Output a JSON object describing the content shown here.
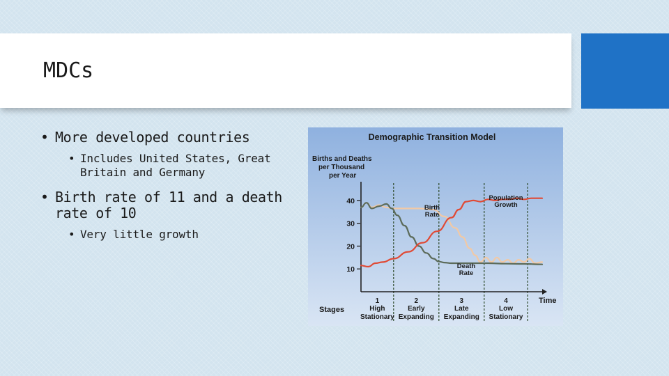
{
  "slide": {
    "title": "MDCs",
    "bullets": [
      {
        "text": "More developed countries",
        "sub": [
          "Includes United States, Great Britain and Germany"
        ]
      },
      {
        "text": "Birth rate of 11 and a death rate of 10",
        "sub": [
          "Very little growth"
        ]
      }
    ],
    "accent_color": "#1f72c6"
  },
  "chart_data": {
    "type": "line",
    "title": "Demographic Transition Model",
    "ylabel_lines": [
      "Births and Deaths",
      "per Thousand",
      "per Year"
    ],
    "xlabel": "Time",
    "stages_label": "Stages",
    "yticks": [
      10,
      20,
      30,
      40
    ],
    "ylim": [
      0,
      47
    ],
    "xlim": [
      0,
      10
    ],
    "stages": [
      {
        "number": "1",
        "line1": "High",
        "line2": "Stationary",
        "start": 0,
        "end": 1.8
      },
      {
        "number": "2",
        "line1": "Early",
        "line2": "Expanding",
        "start": 1.8,
        "end": 4.3
      },
      {
        "number": "3",
        "line1": "Late",
        "line2": "Expanding",
        "start": 4.3,
        "end": 6.8
      },
      {
        "number": "4",
        "line1": "Low",
        "line2": "Stationary",
        "start": 6.8,
        "end": 9.2
      }
    ],
    "series": [
      {
        "name": "Birth Rate",
        "label_lines": [
          "Birth",
          "Rate"
        ],
        "color": "#f1c9a6",
        "x": [
          0,
          0.3,
          0.6,
          1.0,
          1.4,
          1.8,
          2.5,
          3.2,
          4.0,
          4.6,
          5.2,
          5.6,
          6.0,
          6.3,
          6.6,
          6.9,
          7.2,
          7.5,
          7.8,
          8.1,
          8.4,
          8.7,
          9.0,
          9.3,
          9.6,
          10
        ],
        "values": [
          37,
          39,
          37,
          38,
          37,
          36.5,
          36.5,
          36.5,
          36,
          33,
          28,
          24,
          19,
          16,
          13,
          15,
          13,
          15,
          13,
          14,
          12.5,
          14,
          13,
          14.5,
          12.5,
          13
        ]
      },
      {
        "name": "Death Rate",
        "label_lines": [
          "Death",
          "Rate"
        ],
        "color": "#5c6b5a",
        "x": [
          0,
          0.3,
          0.6,
          1.0,
          1.4,
          1.7,
          2.0,
          2.4,
          2.8,
          3.2,
          3.6,
          4.0,
          4.3,
          4.6,
          5.0,
          6.0,
          7.0,
          8.0,
          9.0,
          10
        ],
        "values": [
          37,
          39,
          36.5,
          37.5,
          38.5,
          36.5,
          33.5,
          29,
          24,
          20,
          17,
          14.5,
          13.2,
          12.8,
          12.5,
          12.5,
          12.5,
          12.3,
          12.2,
          12
        ]
      },
      {
        "name": "Population Growth",
        "label_lines": [
          "Population",
          "Growth"
        ],
        "color": "#e04a35",
        "x": [
          0,
          0.4,
          0.8,
          1.2,
          1.8,
          2.6,
          3.4,
          4.2,
          5.0,
          5.4,
          5.8,
          6.2,
          6.6,
          7.0,
          7.4,
          7.8,
          8.2,
          8.6,
          9.0,
          9.4,
          10
        ],
        "values": [
          11.5,
          11,
          12.5,
          13,
          14.5,
          17.5,
          21.5,
          26.5,
          32.5,
          36,
          39.5,
          40,
          39.5,
          40.5,
          40,
          40.5,
          40.5,
          41,
          40.5,
          41,
          41
        ]
      }
    ]
  }
}
